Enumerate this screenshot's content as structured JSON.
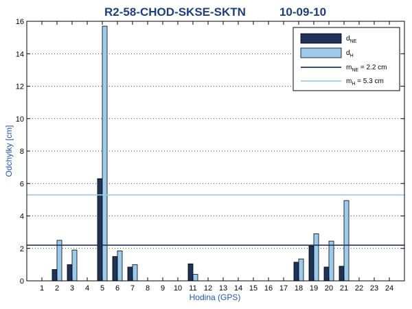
{
  "chart_data": {
    "type": "bar",
    "title": "R2-58-CHOD-SKSE-SKTN",
    "date": "10-09-10",
    "xlabel": "Hodina (GPS)",
    "ylabel": "Odchylky [cm]",
    "ylim": [
      0,
      16
    ],
    "yticks": [
      0,
      2,
      4,
      6,
      8,
      10,
      12,
      14,
      16
    ],
    "categories": [
      "1",
      "2",
      "3",
      "4",
      "5",
      "6",
      "7",
      "8",
      "9",
      "10",
      "11",
      "12",
      "13",
      "14",
      "15",
      "16",
      "17",
      "18",
      "19",
      "20",
      "21",
      "22",
      "23",
      "24"
    ],
    "series": [
      {
        "name": "d_NE",
        "color": "#1f3358",
        "values": [
          0,
          0.7,
          1.0,
          0,
          6.3,
          1.5,
          0.85,
          0,
          0,
          0,
          1.05,
          0,
          0,
          0,
          0,
          0,
          0,
          1.15,
          2.15,
          0.85,
          0.9,
          0,
          0,
          0
        ]
      },
      {
        "name": "d_H",
        "color": "#9dcbec",
        "values": [
          0,
          2.5,
          1.9,
          0,
          15.7,
          1.85,
          1.0,
          0,
          0,
          0,
          0.4,
          0,
          0,
          0,
          0,
          0,
          0,
          1.35,
          2.9,
          2.45,
          4.95,
          0,
          0,
          0
        ]
      }
    ],
    "reference_lines": [
      {
        "name": "m_NE",
        "value": 2.2,
        "color": "#1f3358"
      },
      {
        "name": "m_H",
        "value": 5.3,
        "color": "#9dcbec"
      }
    ],
    "legend": {
      "placement": "top-right",
      "entries": [
        {
          "main": "d",
          "sub": "NE",
          "suffix": ""
        },
        {
          "main": "d",
          "sub": "H",
          "suffix": ""
        },
        {
          "main": "m",
          "sub": "NE",
          "suffix": " = 2.2 cm"
        },
        {
          "main": "m",
          "sub": "H",
          "suffix": "  = 5.3 cm"
        }
      ]
    },
    "grid": "y-dotted"
  }
}
